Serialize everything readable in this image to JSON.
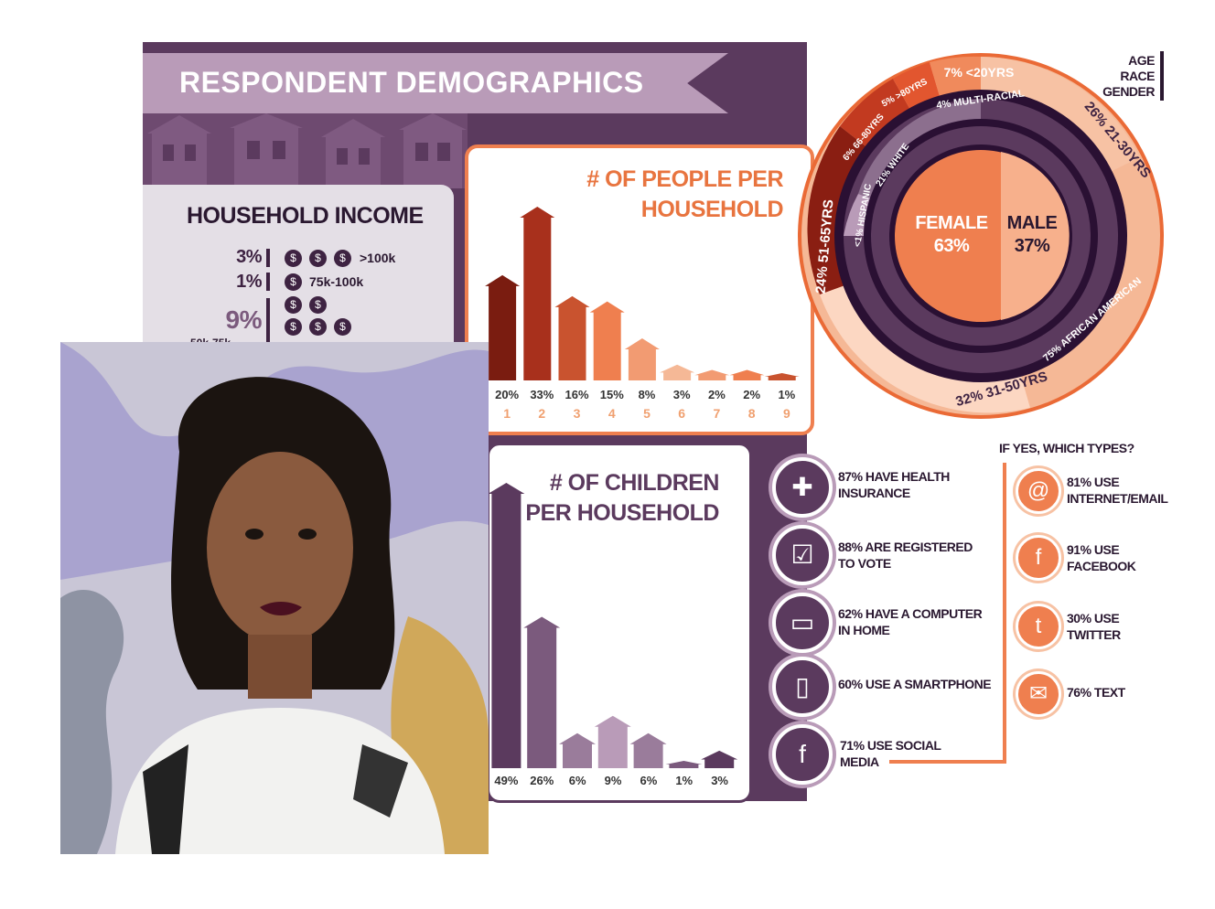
{
  "header": {
    "title": "RESPONDENT DEMOGRAPHICS"
  },
  "income": {
    "title": "HOUSEHOLD INCOME",
    "rows": [
      {
        "pct": "3%",
        "label": ">100k"
      },
      {
        "pct": "1%",
        "label": "75k-100k"
      },
      {
        "pct": "9%",
        "label": ""
      }
    ],
    "partial_label": "50k-75k"
  },
  "people": {
    "title_line1": "# OF PEOPLE PER",
    "title_line2": "HOUSEHOLD",
    "pcts": [
      "20%",
      "33%",
      "16%",
      "15%",
      "8%",
      "3%",
      "2%",
      "2%",
      "1%"
    ],
    "nums": [
      "1",
      "2",
      "3",
      "4",
      "5",
      "6",
      "7",
      "8",
      "9"
    ],
    "values": [
      20,
      33,
      16,
      15,
      8,
      3,
      2,
      2,
      1
    ],
    "colors": [
      "#7a1c10",
      "#a8301c",
      "#c9532f",
      "#ef7f4f",
      "#f29b72",
      "#f5b896",
      "#f29b72",
      "#ef7f4f",
      "#c9532f"
    ]
  },
  "children": {
    "title_line1": "# OF CHILDREN",
    "title_line2": "PER HOUSEHOLD",
    "pcts": [
      "49%",
      "26%",
      "6%",
      "9%",
      "6%",
      "1%",
      "3%"
    ],
    "values": [
      49,
      26,
      6,
      9,
      6,
      1,
      3
    ],
    "colors": [
      "#5b3a5e",
      "#7b5a7d",
      "#9a7c9b",
      "#b99bb8",
      "#9a7c9b",
      "#7b5a7d",
      "#5b3a5e"
    ]
  },
  "donut": {
    "legend": [
      "AGE",
      "RACE",
      "GENDER"
    ],
    "female_label": "FEMALE",
    "female_pct": "63%",
    "male_label": "MALE",
    "male_pct": "37%",
    "age": [
      {
        "pct": "7%",
        "label": "<20YRS"
      },
      {
        "pct": "26%",
        "label": "21-30YRS"
      },
      {
        "pct": "32%",
        "label": "31-50YRS"
      },
      {
        "pct": "24%",
        "label": "51-65YRS"
      },
      {
        "pct": "6%",
        "label": "66-80YRS"
      },
      {
        "pct": "5%",
        "label": ">80YRS"
      }
    ],
    "race": [
      {
        "pct": "4%",
        "label": "MULTI-RACIAL"
      },
      {
        "pct": "75%",
        "label": "AFRICAN AMERICAN"
      },
      {
        "pct": "<1%",
        "label": "HISPANIC"
      },
      {
        "pct": "21%",
        "label": "WHITE"
      }
    ]
  },
  "stats": [
    {
      "icon": "plus-icon",
      "line1": "87% HAVE HEALTH",
      "line2": "INSURANCE"
    },
    {
      "icon": "ballot-icon",
      "line1": "88% ARE REGISTERED",
      "line2": "TO VOTE"
    },
    {
      "icon": "computer-icon",
      "line1": "62% HAVE A COMPUTER",
      "line2": "IN HOME"
    },
    {
      "icon": "smartphone-icon",
      "line1": "60% USE A SMARTPHONE",
      "line2": ""
    },
    {
      "icon": "social-icon",
      "line1": "71% USE SOCIAL",
      "line2": "MEDIA"
    }
  ],
  "web": {
    "title": "IF YES, WHICH TYPES?",
    "items": [
      {
        "icon": "at-icon",
        "line1": "81% USE",
        "line2": "INTERNET/EMAIL"
      },
      {
        "icon": "facebook-icon",
        "line1": "91% USE",
        "line2": "FACEBOOK"
      },
      {
        "icon": "twitter-icon",
        "line1": "30% USE",
        "line2": "TWITTER"
      },
      {
        "icon": "envelope-icon",
        "line1": "76% TEXT",
        "line2": ""
      }
    ]
  }
}
